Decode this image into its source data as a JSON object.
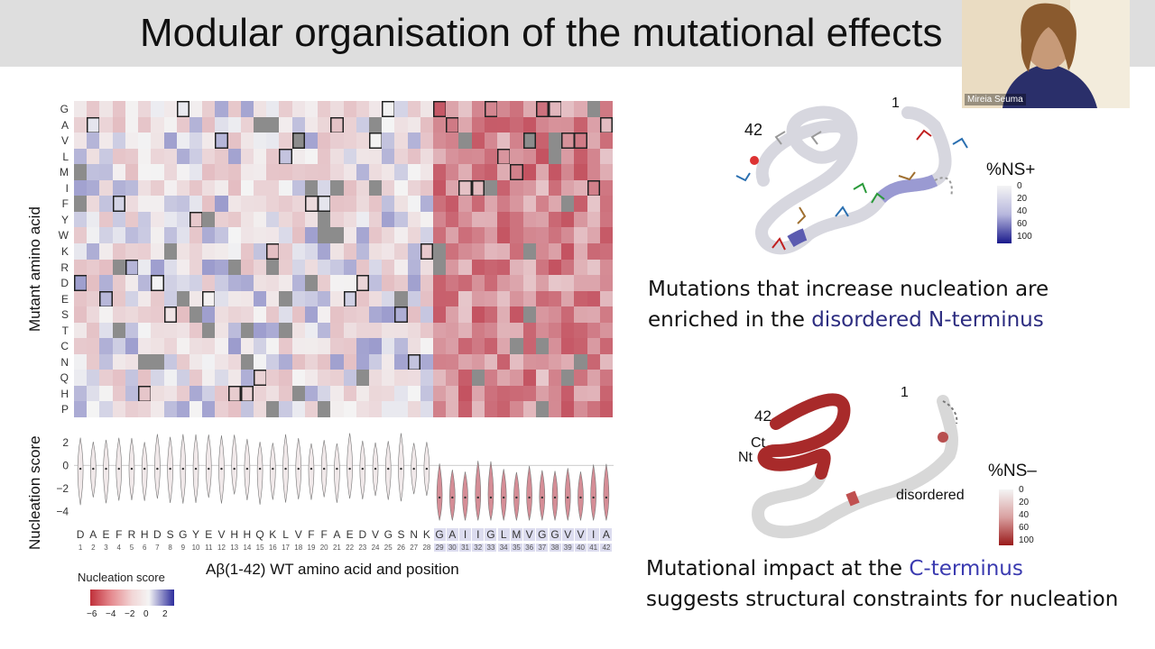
{
  "slide": {
    "title": "Modular organisation of the mutational effects",
    "presenter_name": "Mireia Seuma"
  },
  "heatmap": {
    "mutant_axis_label": "Mutant amino acid",
    "mutants": [
      "G",
      "A",
      "V",
      "L",
      "M",
      "I",
      "F",
      "Y",
      "W",
      "K",
      "R",
      "D",
      "E",
      "S",
      "T",
      "C",
      "N",
      "Q",
      "H",
      "P"
    ],
    "wt_aa": [
      "D",
      "A",
      "E",
      "F",
      "R",
      "H",
      "D",
      "S",
      "G",
      "Y",
      "E",
      "V",
      "H",
      "H",
      "Q",
      "K",
      "L",
      "V",
      "F",
      "F",
      "A",
      "E",
      "D",
      "V",
      "G",
      "S",
      "N",
      "K",
      "G",
      "A",
      "I",
      "I",
      "G",
      "L",
      "M",
      "V",
      "G",
      "G",
      "V",
      "V",
      "I",
      "A"
    ],
    "positions": [
      "1",
      "2",
      "3",
      "4",
      "5",
      "6",
      "7",
      "8",
      "9",
      "10",
      "11",
      "12",
      "13",
      "14",
      "15",
      "16",
      "17",
      "18",
      "19",
      "20",
      "21",
      "22",
      "23",
      "24",
      "25",
      "26",
      "27",
      "28",
      "29",
      "30",
      "31",
      "32",
      "33",
      "34",
      "35",
      "36",
      "37",
      "38",
      "39",
      "40",
      "41",
      "42"
    ],
    "x_axis_title": "Aβ(1-42) WT amino acid and position"
  },
  "violin": {
    "y_axis_label": "Nucleation score",
    "ticks": [
      "2",
      "0",
      "−2",
      "−4"
    ]
  },
  "legend": {
    "title": "Nucleation score",
    "ticks": [
      "−6",
      "−4",
      "−2",
      "0",
      "2"
    ]
  },
  "structure_top": {
    "n_label": "1",
    "c_label": "42",
    "scale_title": "%NS+",
    "scale_ticks": [
      "0",
      "20",
      "40",
      "60",
      "100"
    ],
    "caption_line1": "Mutations that increase nucleation are",
    "caption_line2_pre": "enriched in the ",
    "caption_line2_hl": "disordered N-terminus"
  },
  "structure_bottom": {
    "n_label": "1",
    "c_label": "42",
    "ct_label": "Ct",
    "nt_label": "Nt",
    "disordered_label": "disordered",
    "scale_title": "%NS–",
    "scale_ticks": [
      "0",
      "20",
      "40",
      "60",
      "100"
    ],
    "caption_line1_pre": "Mutational impact at the ",
    "caption_line1_hl": "C-terminus",
    "caption_line2": "suggests structural constraints for nucleation"
  },
  "chart_data": {
    "type": "heatmap",
    "title": "",
    "xlabel": "Aβ(1-42) WT amino acid and position",
    "ylabel": "Mutant amino acid",
    "value_label": "Nucleation score",
    "color_range": [
      -6,
      2
    ],
    "colors": {
      "negative": "#b2182b",
      "neutral": "#f4f4f4",
      "positive": "#2c2c9c",
      "missing": "#8c8c8c"
    },
    "region_means": [
      {
        "positions": "1-28",
        "mean_score": -0.3
      },
      {
        "positions": "29-42",
        "mean_score": -2.8
      }
    ],
    "violin_ylim": [
      -5,
      3
    ]
  }
}
